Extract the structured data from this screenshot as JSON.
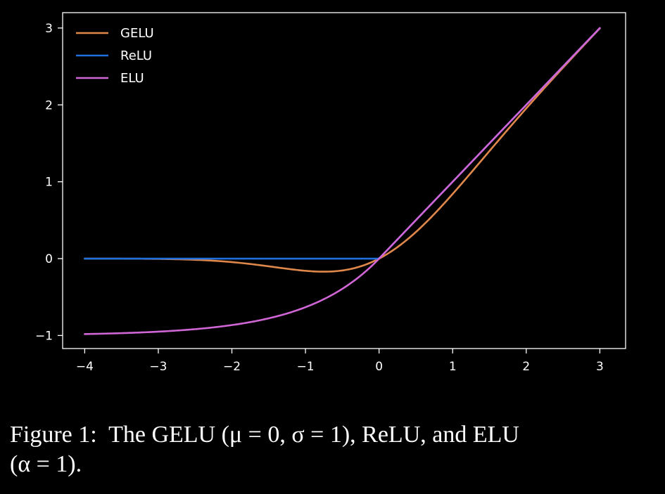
{
  "chart_data": {
    "type": "line",
    "xlim": [
      -4.3,
      3.35
    ],
    "ylim": [
      -1.17,
      3.2
    ],
    "xticks": [
      -4,
      -3,
      -2,
      -1,
      0,
      1,
      2,
      3
    ],
    "yticks": [
      -1,
      0,
      1,
      2,
      3
    ],
    "xtick_labels": [
      "−4",
      "−3",
      "−2",
      "−1",
      "0",
      "1",
      "2",
      "3"
    ],
    "ytick_labels": [
      "−1",
      "0",
      "1",
      "2",
      "3"
    ],
    "x_range": [
      -4,
      3
    ],
    "grid": false,
    "legend_position": "top-left",
    "series": [
      {
        "name": "GELU",
        "color": "#e0874a",
        "x": [
          -4,
          -3.5,
          -3,
          -2.5,
          -2,
          -1.5,
          -1.25,
          -1,
          -0.75,
          -0.5,
          -0.25,
          0,
          0.25,
          0.5,
          0.75,
          1,
          1.5,
          2,
          2.5,
          3
        ],
        "y": [
          0.0,
          -0.001,
          -0.004,
          -0.016,
          -0.045,
          -0.1,
          -0.132,
          -0.159,
          -0.17,
          -0.154,
          -0.1,
          0.0,
          0.15,
          0.346,
          0.58,
          0.841,
          1.4,
          1.955,
          2.484,
          2.996
        ]
      },
      {
        "name": "ReLU",
        "color": "#1f6fde",
        "x": [
          -4,
          0,
          3
        ],
        "y": [
          0,
          0,
          3
        ]
      },
      {
        "name": "ELU",
        "color": "#d066d6",
        "x": [
          -4,
          -3.5,
          -3,
          -2.5,
          -2,
          -1.5,
          -1.25,
          -1,
          -0.75,
          -0.5,
          -0.25,
          0,
          3
        ],
        "y": [
          -0.982,
          -0.97,
          -0.95,
          -0.918,
          -0.865,
          -0.777,
          -0.713,
          -0.632,
          -0.528,
          -0.393,
          -0.221,
          0,
          3
        ]
      }
    ]
  },
  "caption": {
    "line1": "Figure 1:  The GELU (μ = 0, σ = 1), ReLU, and ELU",
    "line2": "(α = 1)."
  }
}
